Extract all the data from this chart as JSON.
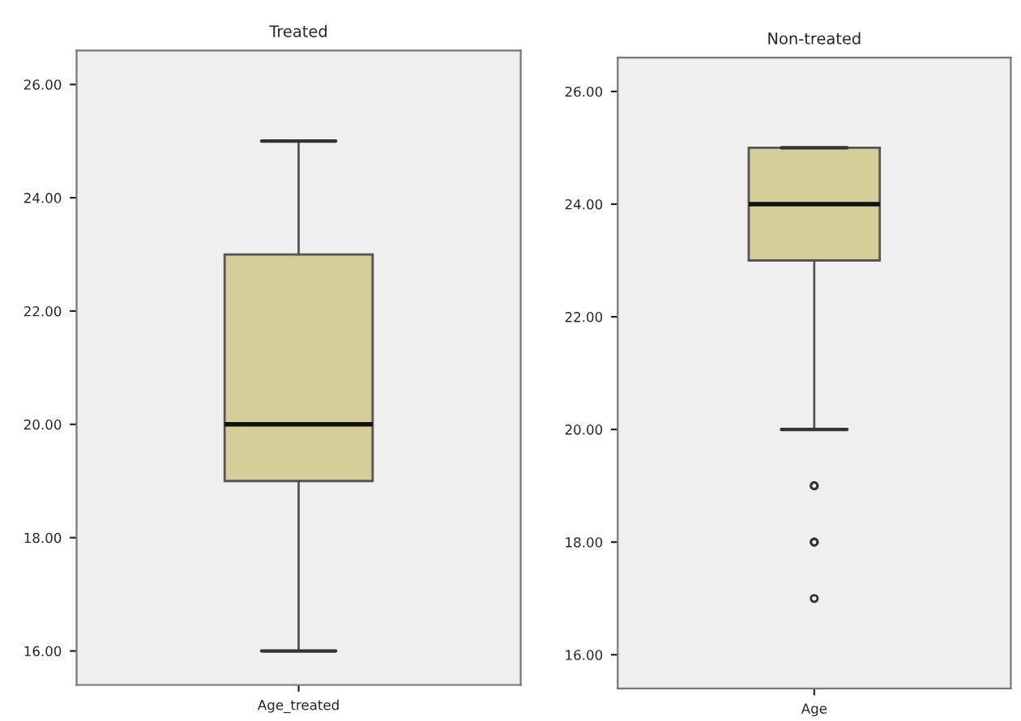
{
  "chart_data": [
    {
      "type": "box",
      "title": "Treated",
      "categories": [
        "Age_treated"
      ],
      "boxes": [
        {
          "low": 16,
          "q1": 19,
          "median": 20,
          "q3": 23,
          "high": 25
        }
      ],
      "color": "#d3cd98",
      "ylim": [
        15.4,
        26.6
      ],
      "yticks": [
        {
          "value": 16,
          "label": "16.00"
        },
        {
          "value": 18,
          "label": "18.00"
        },
        {
          "value": 20,
          "label": "20.00"
        },
        {
          "value": 22,
          "label": "22.00"
        },
        {
          "value": 24,
          "label": "24.00"
        },
        {
          "value": 26,
          "label": "26.00"
        }
      ],
      "grid": false
    },
    {
      "type": "box",
      "title": "Non-treated",
      "categories": [
        "Age"
      ],
      "boxes": [
        {
          "low": 20,
          "q1": 23,
          "median": 24,
          "q3": 25,
          "high": 25,
          "outliers": [
            19,
            19,
            18,
            18,
            17
          ]
        }
      ],
      "color": "#d3cd98",
      "ylim": [
        15.4,
        26.6
      ],
      "yticks": [
        {
          "value": 16,
          "label": "16.00"
        },
        {
          "value": 18,
          "label": "18.00"
        },
        {
          "value": 20,
          "label": "20.00"
        },
        {
          "value": 22,
          "label": "22.00"
        },
        {
          "value": 24,
          "label": "24.00"
        },
        {
          "value": 26,
          "label": "26.00"
        }
      ],
      "grid": false
    }
  ]
}
